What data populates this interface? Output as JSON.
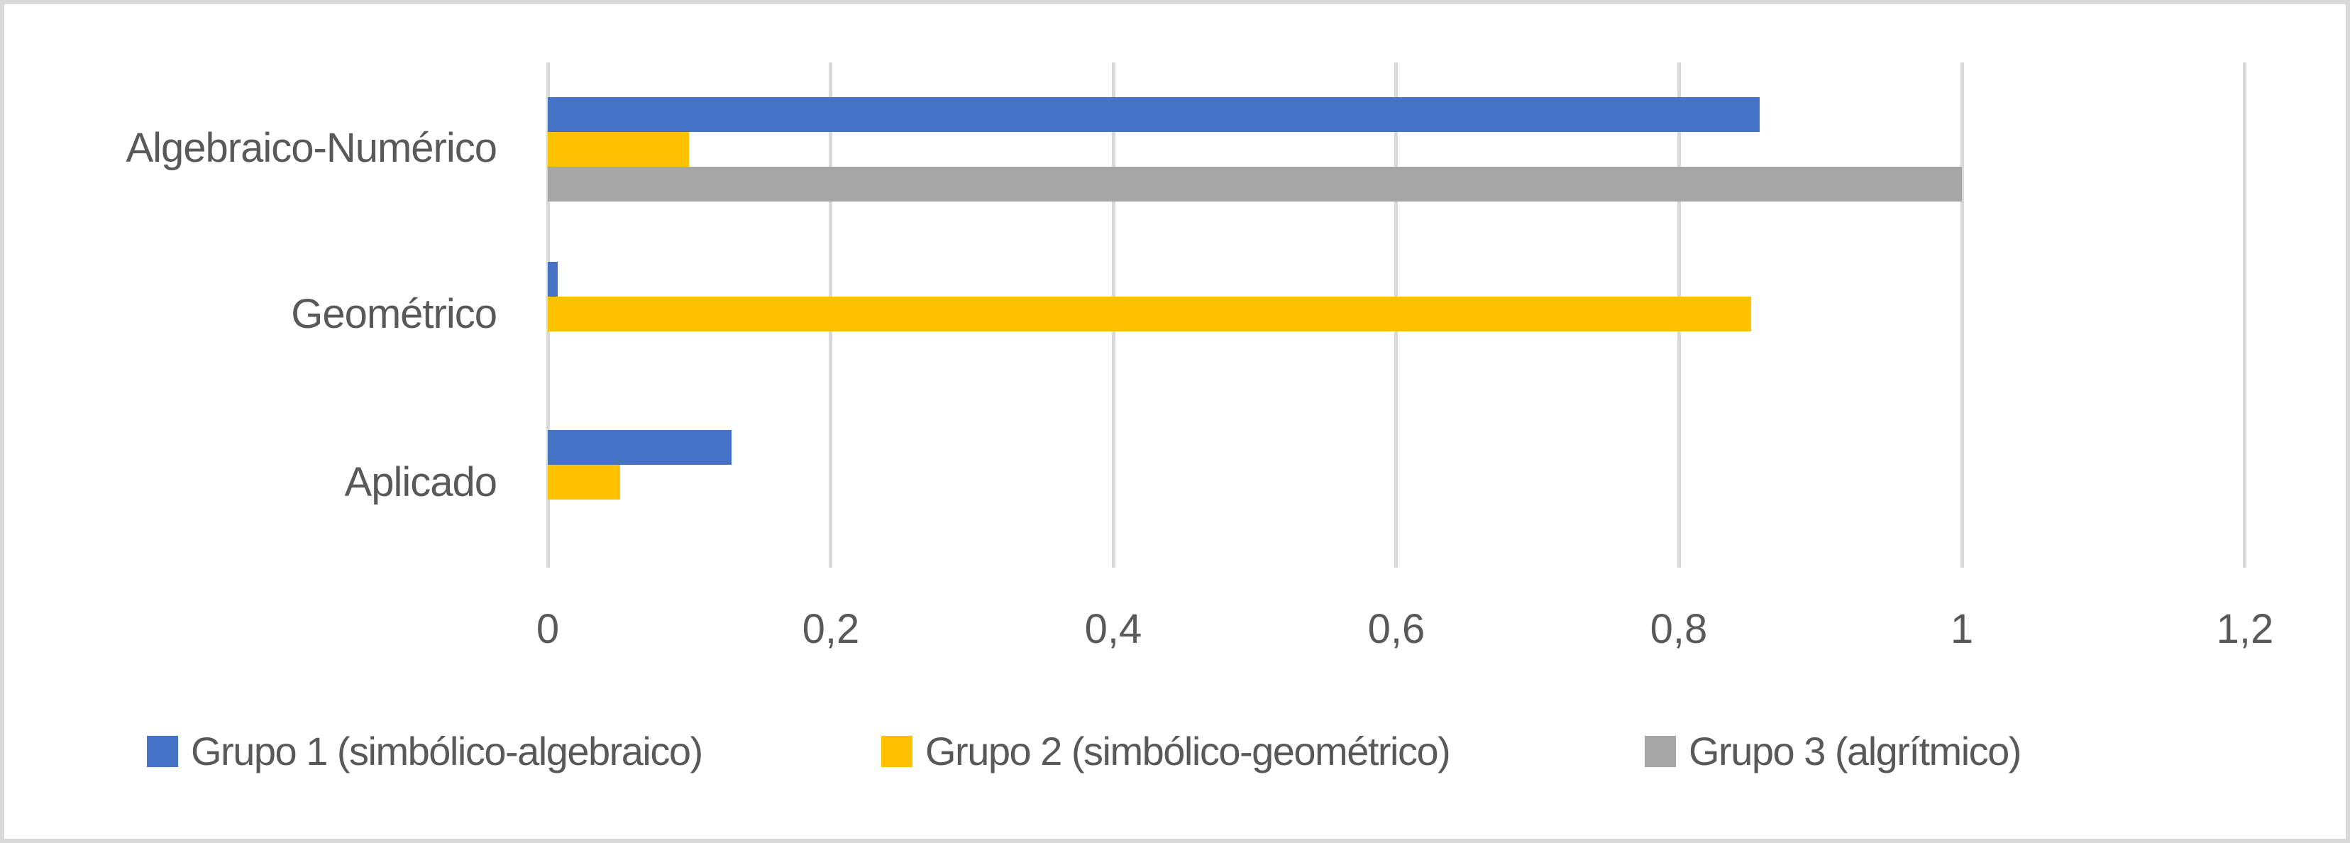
{
  "chart_data": {
    "type": "bar",
    "orientation": "horizontal",
    "title": "",
    "xlabel": "",
    "ylabel": "",
    "categories": [
      "Algebraico-Numérico",
      "Geométrico",
      "Aplicado"
    ],
    "series": [
      {
        "name": "Grupo 1 (simbólico-algebraico)",
        "color": "#4472C4",
        "values": [
          0.857,
          0.007,
          0.13
        ]
      },
      {
        "name": "Grupo 2 (simbólico-geométrico)",
        "color": "#FFC000",
        "values": [
          0.1,
          0.851,
          0.051
        ]
      },
      {
        "name": "Grupo 3 (algrítmico)",
        "color": "#A5A5A5",
        "values": [
          1.0,
          0,
          0
        ]
      }
    ],
    "xlim": [
      0,
      1.2
    ],
    "x_ticks": [
      "0",
      "0,2",
      "0,4",
      "0,6",
      "0,8",
      "1",
      "1,2"
    ],
    "x_tick_values": [
      0,
      0.2,
      0.4,
      0.6,
      0.8,
      1.0,
      1.2
    ],
    "grid": "vertical major gridlines",
    "legend_position": "bottom"
  },
  "legend": {
    "items": [
      {
        "label": "Grupo 1 (simbólico-algebraico)",
        "color": "#4472C4"
      },
      {
        "label": "Grupo 2 (simbólico-geométrico)",
        "color": "#FFC000"
      },
      {
        "label": "Grupo 3 (algrítmico)",
        "color": "#A5A5A5"
      }
    ]
  },
  "colors": {
    "text": "#595959",
    "gridline": "#D9D9D9",
    "border": "#D9D9D9",
    "background": "#FFFFFF"
  }
}
